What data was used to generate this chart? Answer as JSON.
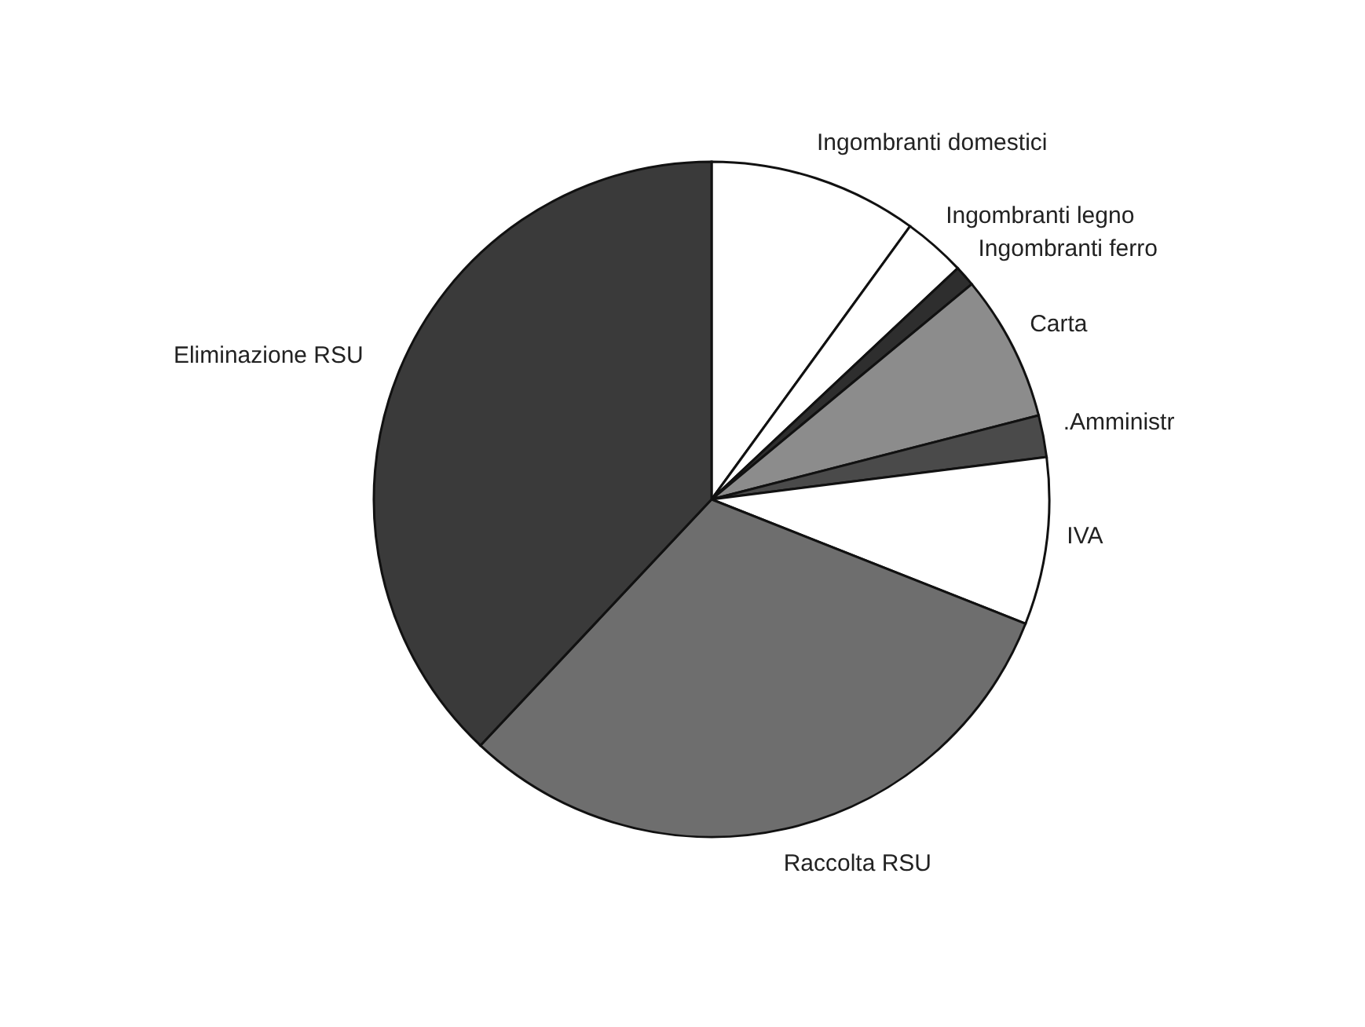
{
  "chart_data": {
    "type": "pie",
    "categories": [
      "Ingombranti domestici",
      "Ingombranti legno",
      "Ingombranti ferro",
      "Carta",
      ".Amministr",
      "IVA",
      "Raccolta RSU",
      "Eliminazione RSU"
    ],
    "values": [
      10,
      3,
      1,
      7,
      2,
      8,
      31,
      38
    ],
    "colors": [
      "#ffffff",
      "#ffffff",
      "#2e2e2e",
      "#8c8c8c",
      "#4a4a4a",
      "#ffffff",
      "#6e6e6e",
      "#3a3a3a"
    ],
    "legend": false
  }
}
